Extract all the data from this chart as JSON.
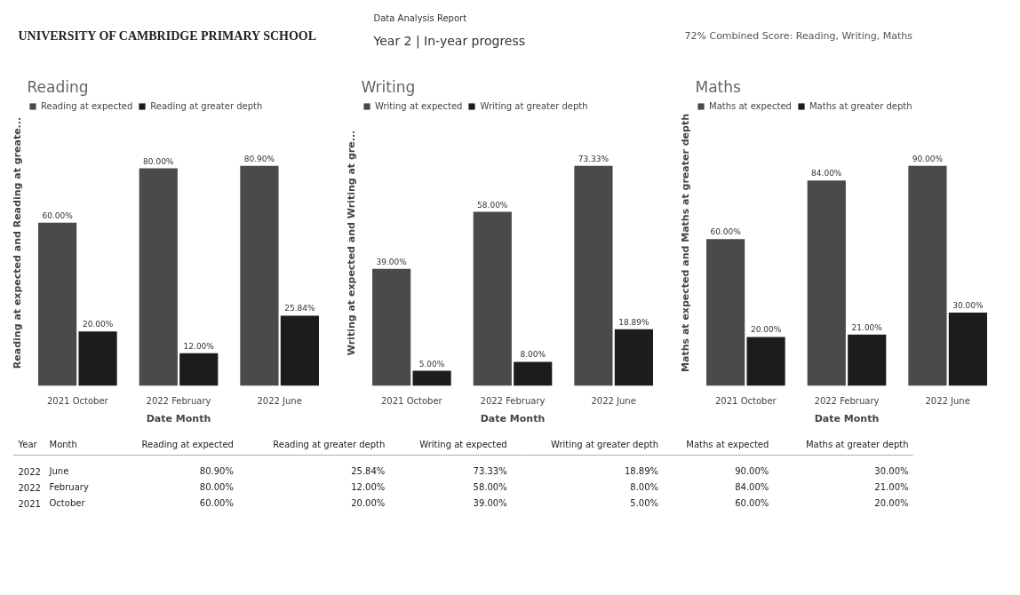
{
  "chart_data": [
    {
      "type": "other",
      "title": "Data Analysis Report",
      "subtitle": "Year 2 | In-year progress",
      "annotations": [
        "UNIVERSITY OF CAMBRIDGE PRIMARY SCHOOL",
        "72% Combined Score: Reading, Writing, Maths"
      ]
    },
    {
      "type": "bar",
      "title": "Reading",
      "xlabel": "Date Month",
      "ylabel": "Reading at expected and Reading at greate...",
      "legend": "top left",
      "categories": [
        "2021 October",
        "2022 February",
        "2022 June"
      ],
      "series": [
        {
          "name": "Reading at expected",
          "color": "#4a4a4a",
          "values": [
            60,
            80,
            80.9
          ],
          "value_labels": [
            "60.00%",
            "80.00%",
            "80.90%"
          ]
        },
        {
          "name": "Reading at greater depth",
          "color": "#1c1c1c",
          "values": [
            20,
            12,
            25.84
          ],
          "value_labels": [
            "20.00%",
            "12.00%",
            "25.84%"
          ]
        }
      ]
    },
    {
      "type": "bar",
      "title": "Writing",
      "xlabel": "Date Month",
      "ylabel": "Writing at expected and Writing at gre...",
      "legend": "top left",
      "categories": [
        "2021 October",
        "2022 February",
        "2022 June"
      ],
      "series": [
        {
          "name": "Writing at expected",
          "color": "#4a4a4a",
          "values": [
            39,
            58,
            73.33
          ],
          "value_labels": [
            "39.00%",
            "58.00%",
            "73.33%"
          ]
        },
        {
          "name": "Writing at greater depth",
          "color": "#1c1c1c",
          "values": [
            5,
            8,
            18.89
          ],
          "value_labels": [
            "5.00%",
            "8.00%",
            "18.89%"
          ]
        }
      ]
    },
    {
      "type": "bar",
      "title": "Maths",
      "xlabel": "Date Month",
      "ylabel": "Maths at expected and Maths at greater depth",
      "legend": "top left",
      "categories": [
        "2021 October",
        "2022 February",
        "2022 June"
      ],
      "series": [
        {
          "name": "Maths at expected",
          "color": "#4a4a4a",
          "values": [
            60,
            84,
            90
          ],
          "value_labels": [
            "60.00%",
            "84.00%",
            "90.00%"
          ]
        },
        {
          "name": "Maths at greater depth",
          "color": "#1c1c1c",
          "values": [
            20,
            21,
            30
          ],
          "value_labels": [
            "20.00%",
            "21.00%",
            "30.00%"
          ]
        }
      ]
    },
    {
      "type": "other",
      "categories": [
        "Year",
        "Month",
        "Reading at expected",
        "Reading at greater depth",
        "Writing at expected",
        "Writing at greater depth",
        "Maths at expected",
        "Maths at greater depth"
      ],
      "cell_labels": [
        [
          "2022",
          "June",
          "80.90%",
          "25.84%",
          "73.33%",
          "18.89%",
          "90.00%",
          "30.00%"
        ],
        [
          "2022",
          "February",
          "80.00%",
          "12.00%",
          "58.00%",
          "8.00%",
          "84.00%",
          "21.00%"
        ],
        [
          "2021",
          "October",
          "60.00%",
          "20.00%",
          "39.00%",
          "5.00%",
          "60.00%",
          "20.00%"
        ]
      ]
    }
  ]
}
